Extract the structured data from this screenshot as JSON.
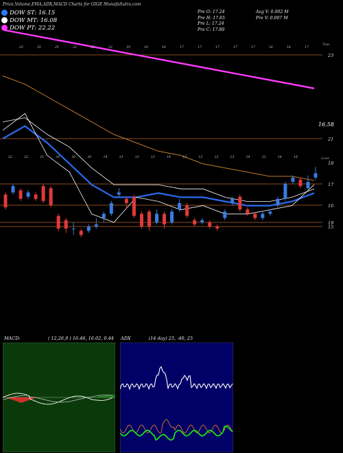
{
  "header": {
    "title": "Price,Volume,EMA,ADX,MACD Charts for GIGE",
    "site": "MunafaSutra.com"
  },
  "legend": [
    {
      "label": "DOW ST: 16.15",
      "color": "#2f7bff"
    },
    {
      "label": "DOW MT: 16.08",
      "color": "#ffffff"
    },
    {
      "label": "DOW PT: 22.22",
      "color": "#ff33ff"
    }
  ],
  "stats": {
    "pre_o": "Pre   O: 17.24",
    "pre_h": "Pre   H: 17.65",
    "pre_l": "Pre   L: 17.24",
    "pre_c": "Pre   C: 17.89",
    "avg_v": "Avg V: 0.002  M",
    "pre_v": "Pre   V: 0.007 M"
  },
  "colors": {
    "bg": "#000000",
    "up": "#3a7be0",
    "down": "#e03a3a",
    "grid": "#b8662e",
    "ema_short": "#2a6cf0",
    "ema_long": "#ff3bff",
    "ema_mid": "#c27a30",
    "macd_bg": "#0a3a0a",
    "adx_bg": "#000066"
  },
  "chart_data": [
    {
      "type": "line",
      "name": "price-ema-panel",
      "y_ticks": [
        "23",
        "21",
        "19"
      ],
      "top_dates": [
        "25",
        "25",
        "25",
        "23",
        "23",
        "23",
        "19",
        "19",
        "18",
        "17",
        "17",
        "17",
        "17",
        "17",
        "16",
        "16",
        "17"
      ],
      "bottom_dates": [
        "22",
        "22",
        "21",
        "20",
        "20",
        "20",
        "14",
        "13",
        "13",
        "13",
        "14",
        "13",
        "13",
        "13",
        "13",
        "14",
        "13",
        "16",
        "16"
      ],
      "right_labels": {
        "top": "Tops",
        "bottom": "Lows"
      },
      "last_value_label": "16.58",
      "series": [
        {
          "color": "#ff3bff",
          "values": [
            23.6,
            23.5,
            23.4,
            23.3,
            23.2,
            23.1,
            23.0,
            22.9,
            22.8,
            22.7,
            22.6,
            22.5,
            22.4,
            22.3,
            22.2
          ]
        },
        {
          "color": "#c27a30",
          "values": [
            22.5,
            22.3,
            22.0,
            21.7,
            21.4,
            21.1,
            20.9,
            20.7,
            20.6,
            20.4,
            20.3,
            20.2,
            20.1,
            20.1,
            20.0
          ]
        },
        {
          "color": "#2a6cf0",
          "values": [
            21.0,
            21.3,
            20.9,
            20.4,
            19.9,
            19.6,
            19.6,
            19.7,
            19.6,
            19.6,
            19.5,
            19.4,
            19.4,
            19.5,
            19.7
          ]
        },
        {
          "color": "#ffffff",
          "values": [
            21.4,
            21.5,
            21.1,
            20.8,
            20.3,
            19.9,
            19.9,
            19.9,
            19.8,
            19.8,
            19.6,
            19.5,
            19.5,
            19.6,
            19.8
          ]
        },
        {
          "color": "#ffffff",
          "values": [
            21.2,
            21.6,
            20.6,
            20.2,
            19.2,
            19.0,
            19.6,
            19.5,
            19.3,
            19.4,
            19.2,
            19.2,
            19.3,
            19.4,
            19.9
          ]
        }
      ]
    },
    {
      "type": "bar",
      "name": "candles-panel",
      "y_ticks": [
        "18",
        "17",
        "16",
        "15"
      ],
      "candles": [
        {
          "o": 16.5,
          "c": 15.9,
          "h": 16.6,
          "l": 15.8
        },
        {
          "o": 16.6,
          "c": 16.9,
          "h": 17.0,
          "l": 16.5
        },
        {
          "o": 16.7,
          "c": 16.3,
          "h": 16.8,
          "l": 16.2
        },
        {
          "o": 16.4,
          "c": 16.6,
          "h": 16.7,
          "l": 16.3
        },
        {
          "o": 16.5,
          "c": 16.3,
          "h": 16.6,
          "l": 16.2
        },
        {
          "o": 16.9,
          "c": 16.2,
          "h": 17.0,
          "l": 16.1
        },
        {
          "o": 16.8,
          "c": 16.0,
          "h": 16.9,
          "l": 15.9
        },
        {
          "o": 15.5,
          "c": 14.9,
          "h": 15.6,
          "l": 14.8
        },
        {
          "o": 15.3,
          "c": 14.9,
          "h": 15.4,
          "l": 14.7
        },
        {
          "o": 14.9,
          "c": 14.9,
          "h": 15.2,
          "l": 14.6
        },
        {
          "o": 14.8,
          "c": 14.6,
          "h": 14.9,
          "l": 14.5
        },
        {
          "o": 14.8,
          "c": 15.0,
          "h": 15.1,
          "l": 14.7
        },
        {
          "o": 15.0,
          "c": 15.1,
          "h": 15.4,
          "l": 14.9
        },
        {
          "o": 15.4,
          "c": 15.6,
          "h": 15.7,
          "l": 15.2
        },
        {
          "o": 15.6,
          "c": 16.1,
          "h": 16.2,
          "l": 15.5
        },
        {
          "o": 16.5,
          "c": 16.6,
          "h": 16.8,
          "l": 16.4
        },
        {
          "o": 16.3,
          "c": 16.1,
          "h": 16.4,
          "l": 15.8
        },
        {
          "o": 16.4,
          "c": 15.5,
          "h": 16.5,
          "l": 15.4
        },
        {
          "o": 15.6,
          "c": 15.0,
          "h": 15.7,
          "l": 14.9
        },
        {
          "o": 15.7,
          "c": 15.0,
          "h": 15.8,
          "l": 14.8
        },
        {
          "o": 15.2,
          "c": 15.6,
          "h": 15.8,
          "l": 15.1
        },
        {
          "o": 15.6,
          "c": 15.1,
          "h": 15.7,
          "l": 14.9
        },
        {
          "o": 15.2,
          "c": 15.7,
          "h": 15.8,
          "l": 15.1
        },
        {
          "o": 15.8,
          "c": 16.1,
          "h": 16.3,
          "l": 15.7
        },
        {
          "o": 16.0,
          "c": 15.5,
          "h": 16.1,
          "l": 15.4
        },
        {
          "o": 15.3,
          "c": 15.1,
          "h": 15.4,
          "l": 15.0
        },
        {
          "o": 15.2,
          "c": 15.3,
          "h": 15.4,
          "l": 15.1
        },
        {
          "o": 15.2,
          "c": 15.0,
          "h": 15.3,
          "l": 14.9
        },
        {
          "o": 15.0,
          "c": 14.9,
          "h": 15.1,
          "l": 14.8
        },
        {
          "o": 15.4,
          "c": 15.7,
          "h": 15.8,
          "l": 15.3
        },
        {
          "o": 16.1,
          "c": 16.3,
          "h": 16.4,
          "l": 16.0
        },
        {
          "o": 16.4,
          "c": 15.8,
          "h": 16.5,
          "l": 15.7
        },
        {
          "o": 15.8,
          "c": 15.6,
          "h": 15.9,
          "l": 15.5
        },
        {
          "o": 15.6,
          "c": 15.4,
          "h": 15.7,
          "l": 15.3
        },
        {
          "o": 15.4,
          "c": 15.6,
          "h": 15.7,
          "l": 15.3
        },
        {
          "o": 15.6,
          "c": 15.7,
          "h": 15.8,
          "l": 15.5
        },
        {
          "o": 16.0,
          "c": 16.3,
          "h": 16.4,
          "l": 15.9
        },
        {
          "o": 16.3,
          "c": 17.0,
          "h": 17.1,
          "l": 16.2
        },
        {
          "o": 17.1,
          "c": 17.3,
          "h": 17.4,
          "l": 17.0
        },
        {
          "o": 17.2,
          "c": 16.9,
          "h": 17.3,
          "l": 16.8
        },
        {
          "o": 16.8,
          "c": 17.1,
          "h": 17.4,
          "l": 16.7
        },
        {
          "o": 17.3,
          "c": 17.5,
          "h": 17.8,
          "l": 17.2
        }
      ]
    },
    {
      "type": "line",
      "name": "macd-panel",
      "title": "MACD:",
      "params": "( 12,26,9 ) 16.46,  16.02,  0.44"
    },
    {
      "type": "line",
      "name": "adx-panel",
      "title": "ADX",
      "params": "(14  day) 25,  -40,  25"
    }
  ]
}
